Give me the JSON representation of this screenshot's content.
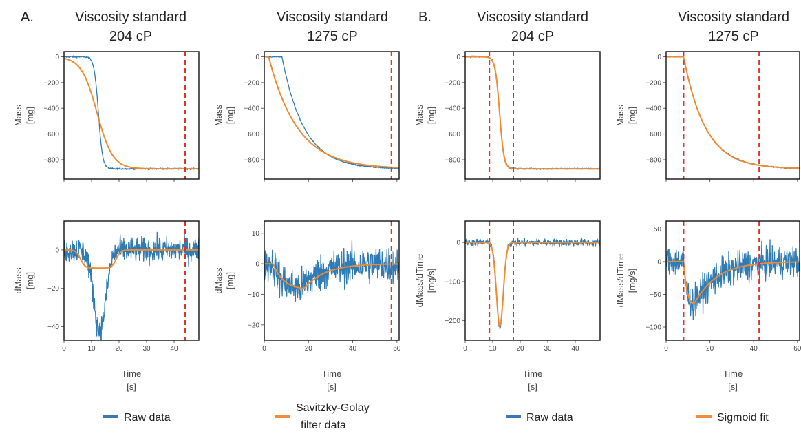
{
  "panel_labels": [
    "A.",
    "B."
  ],
  "columns": [
    {
      "title_line1": "Viscosity standard",
      "title_line2": "204 cP"
    },
    {
      "title_line1": "Viscosity standard",
      "title_line2": "1275 cP"
    },
    {
      "title_line1": "Viscosity standard",
      "title_line2": "204 cP"
    },
    {
      "title_line1": "Viscosity standard",
      "title_line2": "1275 cP"
    }
  ],
  "legend": [
    {
      "label_lines": [
        "Raw data"
      ],
      "color": "#3a78b8"
    },
    {
      "label_lines": [
        "Savitzky-Golay",
        "filter  data"
      ],
      "color": "#f28c3c"
    },
    {
      "label_lines": [
        "Raw data"
      ],
      "color": "#3a78b8"
    },
    {
      "label_lines": [
        "Sigmoid fit"
      ],
      "color": "#f28c3c"
    }
  ],
  "colors": {
    "raw": "#2f7bb5",
    "fit": "#f08a2e",
    "marker": "#e0322a",
    "frame": "#111111"
  },
  "chart_data": [
    {
      "id": "A-204-mass",
      "type": "line",
      "xlabel": "",
      "ylabel_lines": [
        "Mass",
        "[mg]"
      ],
      "xlim": [
        0,
        49
      ],
      "ylim": [
        -950,
        40
      ],
      "xticks": [
        0,
        10,
        20,
        30,
        40
      ],
      "show_xtick_labels": false,
      "yticks": [
        0,
        -200,
        -400,
        -600,
        -800
      ],
      "markers": [
        44
      ],
      "series": [
        {
          "role": "raw",
          "kind": "sigmoid",
          "A": -870,
          "t0": 12.5,
          "k": 1.3,
          "noise": 6
        },
        {
          "role": "fit",
          "kind": "sigmoid",
          "A": -870,
          "t0": 12,
          "k": 0.35,
          "noise": 0
        }
      ]
    },
    {
      "id": "A-1275-mass",
      "type": "line",
      "xlabel": "",
      "ylabel_lines": [
        "Mass",
        "[mg]"
      ],
      "xlim": [
        0,
        61
      ],
      "ylim": [
        -950,
        40
      ],
      "xticks": [
        0,
        20,
        40,
        60
      ],
      "show_xtick_labels": false,
      "yticks": [
        0,
        -200,
        -400,
        -600,
        -800
      ],
      "markers": [
        57.5
      ],
      "series": [
        {
          "role": "raw",
          "kind": "decay",
          "A": -870,
          "t0": 8,
          "tau": 10,
          "noise": 5
        },
        {
          "role": "fit",
          "kind": "decay",
          "A": -870,
          "t0": 2,
          "tau": 13,
          "noise": 0
        }
      ]
    },
    {
      "id": "B-204-mass",
      "type": "line",
      "xlabel": "",
      "ylabel_lines": [
        "Mass",
        "[mg]"
      ],
      "xlim": [
        0,
        49
      ],
      "ylim": [
        -950,
        40
      ],
      "xticks": [
        0,
        10,
        20,
        30,
        40
      ],
      "show_xtick_labels": false,
      "yticks": [
        0,
        -200,
        -400,
        -600,
        -800
      ],
      "markers": [
        8.8,
        17.5
      ],
      "series": [
        {
          "role": "raw",
          "kind": "sigmoid",
          "A": -870,
          "t0": 12.5,
          "k": 1.3,
          "noise": 6
        },
        {
          "role": "fit",
          "kind": "sigmoid",
          "A": -870,
          "t0": 12.5,
          "k": 1.25,
          "noise": 0
        }
      ]
    },
    {
      "id": "B-1275-mass",
      "type": "line",
      "xlabel": "",
      "ylabel_lines": [
        "Mass",
        "[mg]"
      ],
      "xlim": [
        0,
        61
      ],
      "ylim": [
        -950,
        40
      ],
      "xticks": [
        0,
        20,
        40,
        60
      ],
      "show_xtick_labels": false,
      "yticks": [
        0,
        -200,
        -400,
        -600,
        -800
      ],
      "markers": [
        8,
        42.5
      ],
      "series": [
        {
          "role": "raw",
          "kind": "decay",
          "A": -870,
          "t0": 8,
          "tau": 10,
          "noise": 5
        },
        {
          "role": "fit",
          "kind": "decay",
          "A": -870,
          "t0": 8,
          "tau": 10,
          "noise": 0
        }
      ]
    },
    {
      "id": "A-204-dmass",
      "type": "line",
      "xlabel_lines": [
        "Time",
        "[s]"
      ],
      "ylabel_lines": [
        "dMass",
        "[mg]"
      ],
      "xlim": [
        0,
        49
      ],
      "ylim": [
        -47,
        15
      ],
      "xticks": [
        0,
        10,
        20,
        30,
        40
      ],
      "show_xtick_labels": true,
      "yticks": [
        0,
        -20,
        -40
      ],
      "markers": [
        44
      ],
      "series": [
        {
          "role": "raw",
          "kind": "gausspulse",
          "A": -42,
          "t0": 13,
          "sigma": 2.2,
          "noise": 6.5
        },
        {
          "role": "fit",
          "kind": "flatpulse",
          "A": -9.5,
          "t1": 6,
          "t2": 19,
          "k": 1.2,
          "noise": 0
        }
      ]
    },
    {
      "id": "A-1275-dmass",
      "type": "line",
      "xlabel_lines": [
        "Time",
        "[s]"
      ],
      "ylabel_lines": [
        "dMass",
        "[mg]"
      ],
      "xlim": [
        0,
        61
      ],
      "ylim": [
        -25,
        14
      ],
      "xticks": [
        0,
        20,
        40,
        60
      ],
      "show_xtick_labels": true,
      "yticks": [
        10,
        0,
        -10,
        -20
      ],
      "markers": [
        57.5
      ],
      "series": [
        {
          "role": "raw",
          "kind": "skewpulse",
          "A": -8.5,
          "t0": 4,
          "rise": 12,
          "tau": 9,
          "noise": 6
        },
        {
          "role": "fit",
          "kind": "skewpulse",
          "A": -8.5,
          "t0": 4,
          "rise": 14,
          "tau": 9,
          "noise": 0
        }
      ]
    },
    {
      "id": "B-204-dmass",
      "type": "line",
      "xlabel_lines": [
        "Time",
        "[s]"
      ],
      "ylabel_lines": [
        "dMass/dTime",
        "[mg/s]"
      ],
      "xlim": [
        0,
        49
      ],
      "ylim": [
        -250,
        55
      ],
      "xticks": [
        0,
        10,
        20,
        30,
        40
      ],
      "show_xtick_labels": true,
      "yticks": [
        0,
        -100,
        -200
      ],
      "markers": [
        8.8,
        17.5
      ],
      "series": [
        {
          "role": "raw",
          "kind": "gausspulse",
          "A": -220,
          "t0": 12.6,
          "sigma": 1.2,
          "noise": 9
        },
        {
          "role": "fit",
          "kind": "gausspulse",
          "A": -215,
          "t0": 12.6,
          "sigma": 1.25,
          "noise": 0
        }
      ]
    },
    {
      "id": "B-1275-dmass",
      "type": "line",
      "xlabel_lines": [
        "Time",
        "[s]"
      ],
      "ylabel_lines": [
        "dMass/dTime",
        "[mg/s]"
      ],
      "xlim": [
        0,
        61
      ],
      "ylim": [
        -120,
        62
      ],
      "xticks": [
        0,
        20,
        40,
        60
      ],
      "show_xtick_labels": true,
      "yticks": [
        50,
        0,
        -50,
        -100
      ],
      "markers": [
        8,
        42.5
      ],
      "series": [
        {
          "role": "raw",
          "kind": "skewpulse",
          "A": -68,
          "t0": 8,
          "rise": 4.5,
          "tau": 10,
          "noise": 24
        },
        {
          "role": "fit",
          "kind": "skewpulse",
          "A": -68,
          "t0": 8,
          "rise": 4.5,
          "tau": 10,
          "noise": 0
        }
      ]
    }
  ]
}
